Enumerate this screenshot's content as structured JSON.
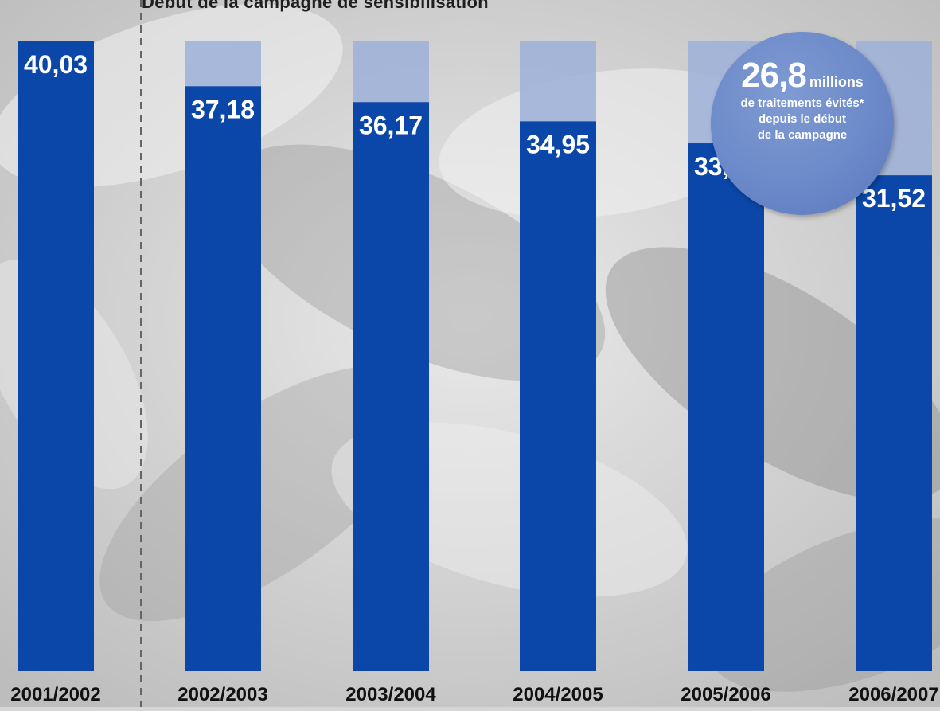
{
  "chart_data": {
    "type": "bar",
    "annotation": "Début de la campagne de sensibilisation",
    "categories": [
      "2001/2002",
      "2002/2003",
      "2003/2004",
      "2004/2005",
      "2005/2006",
      "2006/2007"
    ],
    "values": [
      40.03,
      37.18,
      36.17,
      34.95,
      33.55,
      31.52
    ],
    "value_labels": [
      "40,03",
      "37,18",
      "36,17",
      "34,95",
      "33,55",
      "31,52"
    ],
    "reference_value": 40.03,
    "campaign_start_between": [
      "2001/2002",
      "2002/2003"
    ],
    "callout": {
      "number": "26,8",
      "unit": "millions",
      "lines": [
        "de traitements évités*",
        "depuis le début",
        "de la campagne"
      ]
    },
    "colors": {
      "bar": "#0a47a8",
      "reference_bar": "#9eb0d8",
      "value_text": "#ffffff",
      "category_text": "#111111",
      "divider": "#666666"
    }
  }
}
